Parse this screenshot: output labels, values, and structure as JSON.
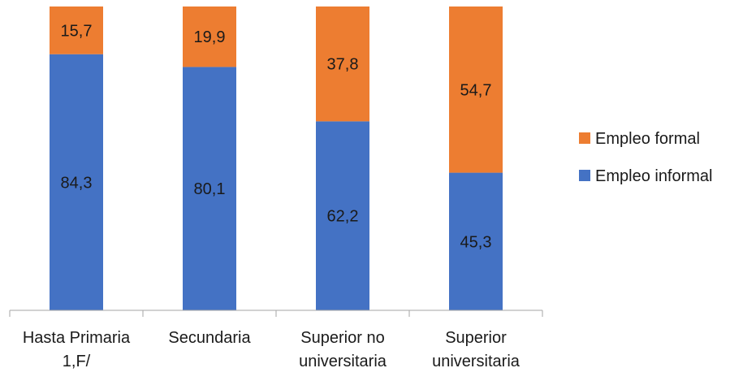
{
  "chart_data": {
    "type": "bar",
    "stacked": true,
    "categories": [
      [
        "Hasta Primaria",
        "1,F/"
      ],
      [
        "Secundaria"
      ],
      [
        "Superior no",
        "universitaria"
      ],
      [
        "Superior",
        "universitaria"
      ]
    ],
    "series": [
      {
        "name": "Empleo informal",
        "color": "#4472C4",
        "values": [
          84.3,
          80.1,
          62.2,
          45.3
        ],
        "labels": [
          "84,3",
          "80,1",
          "62,2",
          "45,3"
        ]
      },
      {
        "name": "Empleo formal",
        "color": "#ED7D31",
        "values": [
          15.7,
          19.9,
          37.8,
          54.7
        ],
        "labels": [
          "15,7",
          "19,9",
          "37,8",
          "54,7"
        ]
      }
    ],
    "ylim": [
      0,
      100
    ],
    "legend_position": "right",
    "legend_order": [
      "Empleo formal",
      "Empleo informal"
    ],
    "grid": false,
    "title": "",
    "xlabel": "",
    "ylabel": ""
  }
}
